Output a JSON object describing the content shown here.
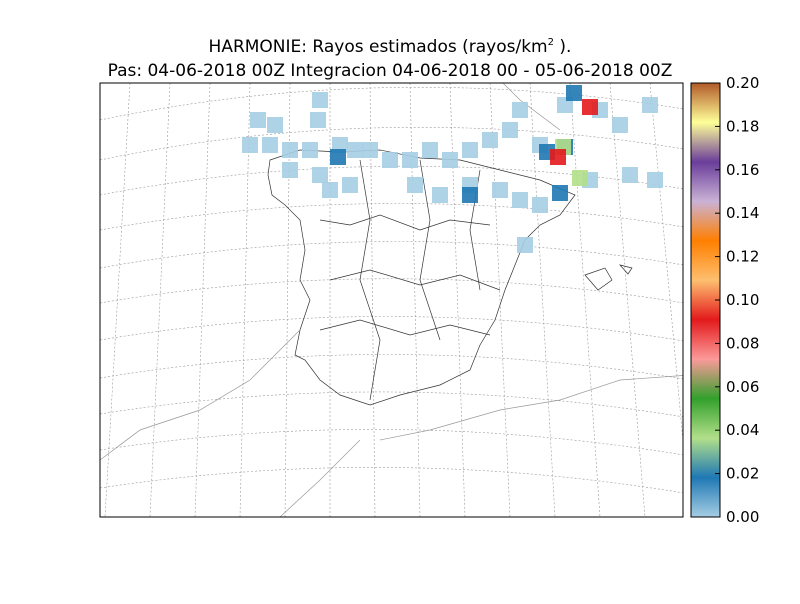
{
  "map": {
    "title": {
      "text": "HARMONIE: Rayos estimados  (rayos/km",
      "superscript": "2",
      "suffix": " )."
    },
    "subtitle": "Pas: 04-06-2018 00Z Integracion 04-06-2018 00 - 05-06-2018 00Z",
    "colorbar": {
      "lim": [
        0,
        0.2
      ],
      "ticks": [
        {
          "value": 0,
          "label": "0.00"
        },
        {
          "value": 0.02,
          "label": "0.02"
        },
        {
          "value": 0.04,
          "label": "0.04"
        },
        {
          "value": 0.06,
          "label": "0.06"
        },
        {
          "value": 0.08,
          "label": "0.08"
        },
        {
          "value": 0.1,
          "label": "0.10"
        },
        {
          "value": 0.12,
          "label": "0.12"
        },
        {
          "value": 0.14,
          "label": "0.14"
        },
        {
          "value": 0.16,
          "label": "0.16"
        },
        {
          "value": 0.18,
          "label": "0.18"
        },
        {
          "value": 0.2,
          "label": "0.20"
        }
      ],
      "colors": [
        "#a6cee3",
        "#1f78b4",
        "#b2df8a",
        "#33a02c",
        "#fb9a99",
        "#e31a1c",
        "#fdbf6f",
        "#ff7f00",
        "#cab2d6",
        "#6a3d9a",
        "#ffff99",
        "#b15928"
      ]
    },
    "cells": [
      0.005,
      0.005,
      0.005,
      0.005,
      0.005,
      0.005,
      0.005,
      0.005,
      0.005,
      0.005,
      0.005,
      0.005,
      0.005,
      0.005,
      0.005,
      0.005,
      0.005,
      0.005,
      0.005,
      0.005,
      0.005,
      0.005,
      0.005,
      0.005,
      0.005,
      0.005,
      0.005,
      0.005,
      0.005,
      0.005,
      0.005,
      0.005,
      0.005,
      0.005,
      0.005,
      0.005,
      0.005,
      0.005,
      0.018,
      0.018,
      0.018,
      0.018,
      0.018,
      0.018,
      0.045,
      0.045,
      0.09,
      0.09
    ]
  }
}
